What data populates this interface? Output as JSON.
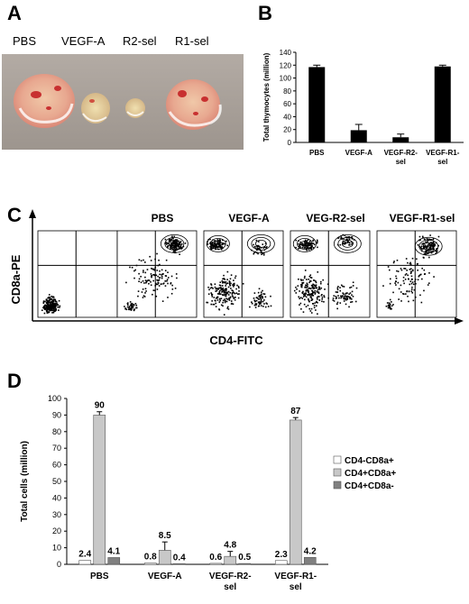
{
  "panel_letters": {
    "a": "A",
    "b": "B",
    "c": "C",
    "d": "D"
  },
  "panel_a": {
    "labels": [
      "PBS",
      "VEGF-A",
      "R2-sel",
      "R1-sel"
    ]
  },
  "colors": {
    "bar_b": "#000000",
    "series_1": "#ffffff",
    "series_2": "#c8c8c8",
    "series_3": "#808080",
    "photo_bg": "#a8a099"
  },
  "chart_data": [
    {
      "type": "bar",
      "categories": [
        "PBS",
        "VEGF-A",
        "VEGF-R2-sel",
        "VEGF-R1-sel"
      ],
      "values": [
        117,
        19,
        8,
        118
      ],
      "errors": [
        3,
        9,
        5,
        2
      ],
      "ylabel": "Total thymocytes (million)",
      "ylim": [
        0,
        140
      ],
      "yticks": [
        "0",
        "20",
        "40",
        "60",
        "80",
        "100",
        "120",
        "140"
      ],
      "cat_labels": [
        [
          "PBS"
        ],
        [
          "VEGF-A"
        ],
        [
          "VEGF-R2-",
          "sel"
        ],
        [
          "VEGF-R1-",
          "sel"
        ]
      ]
    },
    {
      "type": "scatter",
      "panel_titles": [
        "PBS",
        "VEGF-A",
        "VEG-R2-sel",
        "VEGF-R1-sel"
      ],
      "ylabel": "CD8a-PE",
      "xlabel": "CD4-FITC"
    },
    {
      "type": "bar",
      "categories": [
        "PBS",
        "VEGF-A",
        "VEGF-R2-sel",
        "VEGF-R1-sel"
      ],
      "cat_labels": [
        [
          "PBS"
        ],
        [
          "VEGF-A"
        ],
        [
          "VEGF-R2-",
          "sel"
        ],
        [
          "VEGF-R1-",
          "sel"
        ]
      ],
      "series": [
        {
          "name": "CD4-CD8a+",
          "values": [
            2.4,
            0.8,
            0.6,
            2.3
          ],
          "errors": [
            0,
            0,
            0,
            0
          ],
          "labels": [
            "2.4",
            "0.8",
            "0.6",
            "2.3"
          ]
        },
        {
          "name": "CD4+CD8a+",
          "values": [
            90,
            8.5,
            4.8,
            87
          ],
          "errors": [
            2,
            5,
            3,
            1.5
          ],
          "labels": [
            "90",
            "8.5",
            "4.8",
            "87"
          ]
        },
        {
          "name": "CD4+CD8a-",
          "values": [
            4.1,
            0.4,
            0.5,
            4.2
          ],
          "errors": [
            0,
            0,
            0,
            0
          ],
          "labels": [
            "4.1",
            "0.4",
            "0.5",
            "4.2"
          ]
        }
      ],
      "ylabel": "Total cells (million)",
      "ylim": [
        0,
        100
      ],
      "yticks": [
        "0",
        "10",
        "20",
        "30",
        "40",
        "50",
        "60",
        "70",
        "80",
        "90",
        "100"
      ]
    }
  ]
}
